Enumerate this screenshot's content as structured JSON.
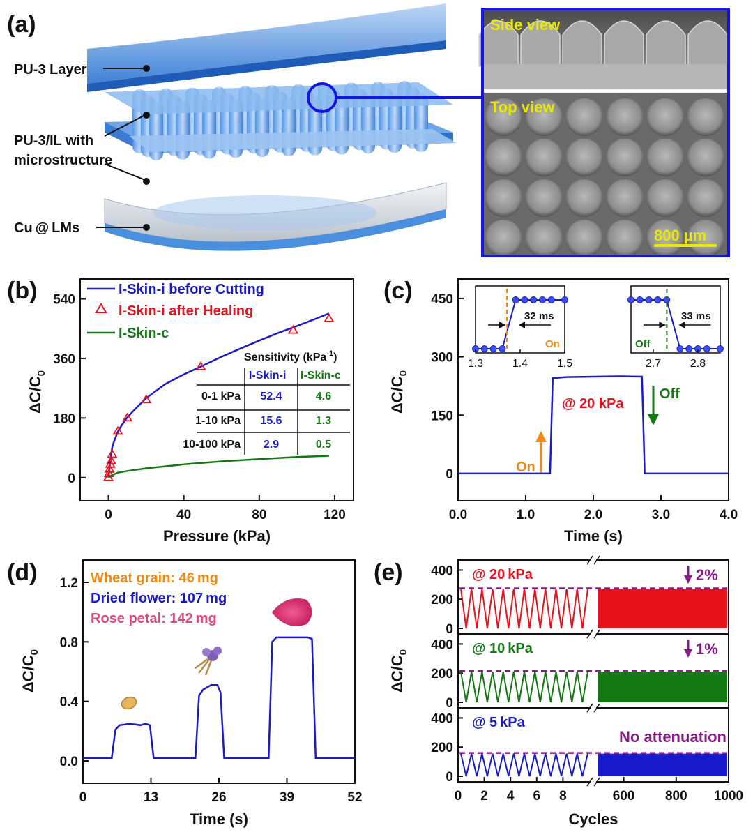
{
  "panel_labels": {
    "a": "(a)",
    "b": "(b)",
    "c": "(c)",
    "d": "(d)",
    "e": "(e)"
  },
  "panel_a": {
    "layer_labels": [
      "PU-3 Layer",
      "PU-3/IL with",
      "microstructure",
      "Cu @ LMs"
    ],
    "sem_side": "Side view",
    "sem_top": "Top view",
    "scale_bar": "800 µm"
  },
  "colors": {
    "blue": "#1a1acd",
    "red": "#e8111c",
    "green": "#137a13",
    "orange": "#f08a12",
    "purple": "#8c1a8c",
    "pink": "#e0487f",
    "gold": "#e5e600"
  },
  "chart_data": [
    {
      "panel": "b",
      "type": "line",
      "xlabel": "Pressure (kPa)",
      "ylabel": "ΔC/C0",
      "xlim": [
        -15,
        130
      ],
      "ylim": [
        -70,
        600
      ],
      "xticks": [
        0,
        40,
        80,
        120
      ],
      "yticks": [
        0,
        180,
        360,
        540
      ],
      "legend": [
        "I-Skin-i before Cutting",
        "I-Skin-i after Healing",
        "I-Skin-c"
      ],
      "series": [
        {
          "name": "I-Skin-i before Cutting",
          "style": "line",
          "color": "#1a1acd",
          "x": [
            0,
            0.5,
            1,
            2,
            3,
            5,
            7,
            10,
            15,
            20,
            30,
            40,
            50,
            60,
            70,
            80,
            90,
            100,
            110,
            117
          ],
          "y": [
            0,
            26,
            52,
            92,
            110,
            139,
            158,
            182,
            212,
            240,
            282,
            312,
            338,
            365,
            390,
            414,
            437,
            458,
            480,
            496
          ]
        },
        {
          "name": "I-Skin-i after Healing",
          "style": "marker",
          "color": "#e8111c",
          "x": [
            0,
            0.3,
            0.6,
            1,
            1.5,
            2,
            5,
            10,
            20,
            49,
            98,
            117
          ],
          "y": [
            0,
            12,
            25,
            40,
            50,
            70,
            140,
            180,
            235,
            335,
            445,
            480
          ]
        },
        {
          "name": "I-Skin-c",
          "style": "line",
          "color": "#137a13",
          "x": [
            0,
            1,
            5,
            10,
            20,
            40,
            60,
            80,
            100,
            117
          ],
          "y": [
            0,
            5,
            15,
            20,
            28,
            40,
            49,
            56,
            62,
            66
          ]
        }
      ],
      "table": {
        "title": "Sensitivity (kPa⁻¹)",
        "columns": [
          "I-Skin-i",
          "I-Skin-c"
        ],
        "rows": [
          {
            "range": "0-1 kPa",
            "i": "52.4",
            "c": "4.6"
          },
          {
            "range": "1-10 kPa",
            "i": "15.6",
            "c": "1.3"
          },
          {
            "range": "10-100 kPa",
            "i": "2.9",
            "c": "0.5"
          }
        ]
      }
    },
    {
      "panel": "c",
      "type": "line",
      "xlabel": "Time (s)",
      "ylabel": "ΔC/C0",
      "xlim": [
        0,
        4.0
      ],
      "ylim": [
        -70,
        500
      ],
      "xticks": [
        "0.0",
        "1.0",
        "2.0",
        "3.0",
        "4.0"
      ],
      "yticks": [
        0,
        150,
        300,
        450
      ],
      "annotations": {
        "load": "@ 20 kPa",
        "on": "On",
        "off": "Off"
      },
      "series": [
        {
          "name": "",
          "color": "#1a1acd",
          "x": [
            0,
            1.36,
            1.4,
            1.6,
            2.0,
            2.4,
            2.72,
            2.76,
            4.0
          ],
          "y": [
            0,
            0,
            245,
            248,
            249,
            250,
            249,
            0,
            0
          ]
        }
      ],
      "insets": [
        {
          "xlim": [
            1.3,
            1.5
          ],
          "xticks": [
            "1.3",
            "1.4",
            "1.5"
          ],
          "label": "32 ms",
          "state": "On",
          "x": [
            1.3,
            1.32,
            1.34,
            1.36,
            1.39,
            1.41,
            1.43,
            1.45,
            1.47,
            1.5
          ],
          "y": [
            0,
            0,
            0,
            0,
            1,
            1,
            1,
            1,
            1,
            1
          ]
        },
        {
          "xlim": [
            2.65,
            2.85
          ],
          "xticks": [
            "2.7",
            "2.8"
          ],
          "label": "33 ms",
          "state": "Off",
          "x": [
            2.65,
            2.67,
            2.69,
            2.71,
            2.73,
            2.76,
            2.78,
            2.8,
            2.82,
            2.85
          ],
          "y": [
            1,
            1,
            1,
            1,
            1,
            0,
            0,
            0,
            0,
            0
          ]
        }
      ]
    },
    {
      "panel": "d",
      "type": "line",
      "xlabel": "Time (s)",
      "ylabel": "ΔC/C0",
      "xlim": [
        0,
        52
      ],
      "ylim": [
        -0.15,
        1.35
      ],
      "xticks": [
        0,
        13,
        26,
        39,
        52
      ],
      "yticks": [
        "0.0",
        "0.4",
        "0.8",
        "1.2"
      ],
      "legend": [
        {
          "text": "Wheat grain: 46 mg",
          "color": "#f08a12"
        },
        {
          "text": "Dried flower: 107 mg",
          "color": "#1a1acd"
        },
        {
          "text": "Rose petal: 142 mg",
          "color": "#e0487f"
        }
      ],
      "series": [
        {
          "name": "",
          "color": "#1a1acd",
          "x": [
            0,
            5.5,
            6.2,
            7,
            9,
            11,
            12,
            12.8,
            13.5,
            21.5,
            22.2,
            23,
            24.5,
            25.7,
            26.3,
            27,
            35.5,
            36.2,
            37,
            40,
            43,
            43.8,
            44.5,
            52
          ],
          "y": [
            0.02,
            0.02,
            0.21,
            0.24,
            0.25,
            0.24,
            0.25,
            0.24,
            0.02,
            0.02,
            0.44,
            0.48,
            0.51,
            0.51,
            0.46,
            0.02,
            0.02,
            0.8,
            0.83,
            0.83,
            0.83,
            0.82,
            0.02,
            0.02
          ]
        }
      ]
    },
    {
      "panel": "e",
      "type": "line",
      "xlabel": "Cycles",
      "ylabel": "ΔC/C0",
      "xticks": [
        0,
        2,
        4,
        6,
        8,
        600,
        800,
        1000
      ],
      "yticks": [
        0,
        200,
        400
      ],
      "ylim": [
        0,
        450
      ],
      "x_break": {
        "left": [
          0,
          10
        ],
        "right": [
          500,
          1000
        ]
      },
      "rows": [
        {
          "label": "@ 20 kPa",
          "note": "2%",
          "color": "#e8111c",
          "peak": 270,
          "dash": 275
        },
        {
          "label": "@ 10 kPa",
          "note": "1%",
          "color": "#137a13",
          "peak": 210,
          "dash": 215
        },
        {
          "label": "@ 5 kPa",
          "note": "No attenuation",
          "color": "#1a1acd",
          "peak": 155,
          "dash": 160
        }
      ]
    }
  ]
}
